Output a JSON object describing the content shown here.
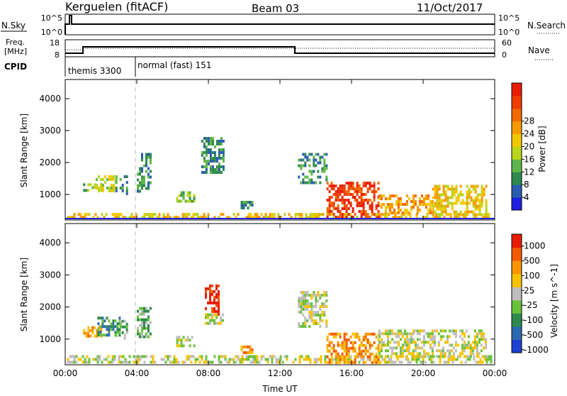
{
  "header": {
    "radar": "Kerguelen (fitACF)",
    "beam": "Beam 03",
    "date": "11/Oct/2017"
  },
  "top_panels": {
    "nsky_label": "N.Sky",
    "nsearch_label": "N.Search",
    "nsky_ticks": [
      "10^5",
      "10^0"
    ],
    "nsearch_ticks": [
      "10^5",
      "10^0"
    ],
    "freq_label_1": "Freq.",
    "freq_label_2": "[MHz]",
    "freq_ticks": [
      "18",
      "8"
    ],
    "nave_label": "Nave",
    "nave_ticks": [
      "60",
      "0"
    ],
    "cpid_label": "CPID",
    "cpid_modes": [
      {
        "label": "themis 3300",
        "start_hour": 0,
        "end_hour": 4
      },
      {
        "label": "normal (fast) 151",
        "start_hour": 4,
        "end_hour": 24
      }
    ]
  },
  "chart_data": [
    {
      "type": "heatmap",
      "title": "",
      "ylabel": "Slant Range [km]",
      "xlabel": "",
      "xlim": [
        0,
        24
      ],
      "ylim": [
        200,
        4600
      ],
      "y_ticks": [
        "4000",
        "3000",
        "2000",
        "1000"
      ],
      "colorbar_label": "Power [dB]",
      "colorbar_ticks": [
        "28",
        "24",
        "20",
        "16",
        "12",
        "8",
        "4"
      ],
      "colorbar_colors": [
        "#1f1fe0",
        "#2a5db0",
        "#2e8a4e",
        "#5fb648",
        "#b8d41c",
        "#f4c800",
        "#f79a00",
        "#f26a00",
        "#ef3d00",
        "#e81c00"
      ],
      "regions": [
        {
          "t0": 0.1,
          "t1": 23.8,
          "r0": 250,
          "r1": 420,
          "level": 5
        },
        {
          "t0": 1.0,
          "t1": 2.0,
          "r0": 1100,
          "r1": 1350,
          "level": 3
        },
        {
          "t0": 1.7,
          "t1": 2.8,
          "r0": 1100,
          "r1": 1600,
          "level": 4
        },
        {
          "t0": 2.8,
          "t1": 3.5,
          "r0": 1000,
          "r1": 1600,
          "level": 2
        },
        {
          "t0": 4.0,
          "t1": 4.8,
          "r0": 1100,
          "r1": 2300,
          "level": 2
        },
        {
          "t0": 6.2,
          "t1": 7.2,
          "r0": 800,
          "r1": 1100,
          "level": 3
        },
        {
          "t0": 7.6,
          "t1": 8.8,
          "r0": 1700,
          "r1": 2800,
          "level": 2
        },
        {
          "t0": 9.8,
          "t1": 10.4,
          "r0": 600,
          "r1": 800,
          "level": 2
        },
        {
          "t0": 13.0,
          "t1": 14.6,
          "r0": 1400,
          "r1": 2300,
          "level": 2
        },
        {
          "t0": 14.6,
          "t1": 17.5,
          "r0": 300,
          "r1": 1400,
          "level": 8
        },
        {
          "t0": 17.5,
          "t1": 20.5,
          "r0": 400,
          "r1": 1000,
          "level": 6
        },
        {
          "t0": 20.5,
          "t1": 23.5,
          "r0": 400,
          "r1": 1300,
          "level": 5
        }
      ]
    },
    {
      "type": "heatmap",
      "title": "",
      "ylabel": "Slant Range [km]",
      "xlabel": "Time UT",
      "xlim": [
        0,
        24
      ],
      "ylim": [
        200,
        4600
      ],
      "x_ticks": [
        "00:00",
        "04:00",
        "08:00",
        "12:00",
        "16:00",
        "20:00",
        "00:00"
      ],
      "y_ticks": [
        "4000",
        "3000",
        "2000",
        "1000"
      ],
      "colorbar_label": "Velocity [m s^-1]",
      "colorbar_ticks": [
        "1000",
        "500",
        "100",
        "25",
        "-25",
        "-100",
        "-500",
        "-1000"
      ],
      "colorbar_colors": [
        "#1f3fd0",
        "#2a6ab0",
        "#2e8a4e",
        "#6ac23a",
        "#bdbdbd",
        "#f7c200",
        "#f79400",
        "#f25a00",
        "#e81c00"
      ],
      "regions": [
        {
          "t0": 0.1,
          "t1": 23.8,
          "r0": 250,
          "r1": 500,
          "level": 4
        },
        {
          "t0": 1.0,
          "t1": 2.0,
          "r0": 1100,
          "r1": 1400,
          "level": 6
        },
        {
          "t0": 1.8,
          "t1": 3.0,
          "r0": 1100,
          "r1": 1700,
          "level": 2
        },
        {
          "t0": 2.8,
          "t1": 3.5,
          "r0": 1000,
          "r1": 1600,
          "level": 3
        },
        {
          "t0": 4.0,
          "t1": 4.8,
          "r0": 1100,
          "r1": 2000,
          "level": 3
        },
        {
          "t0": 6.2,
          "t1": 7.2,
          "r0": 800,
          "r1": 1100,
          "level": 4
        },
        {
          "t0": 7.8,
          "t1": 8.6,
          "r0": 1800,
          "r1": 2700,
          "level": 8
        },
        {
          "t0": 7.8,
          "t1": 8.8,
          "r0": 1500,
          "r1": 1800,
          "level": 4
        },
        {
          "t0": 9.8,
          "t1": 10.4,
          "r0": 600,
          "r1": 800,
          "level": 6
        },
        {
          "t0": 13.0,
          "t1": 14.6,
          "r0": 1400,
          "r1": 2500,
          "level": 4
        },
        {
          "t0": 14.6,
          "t1": 17.5,
          "r0": 300,
          "r1": 1200,
          "level": 6
        },
        {
          "t0": 17.5,
          "t1": 23.5,
          "r0": 500,
          "r1": 1300,
          "level": 4
        }
      ]
    }
  ],
  "colors": {
    "axis": "#000000",
    "guide": "#bdbdbd",
    "trace": "#000000"
  }
}
